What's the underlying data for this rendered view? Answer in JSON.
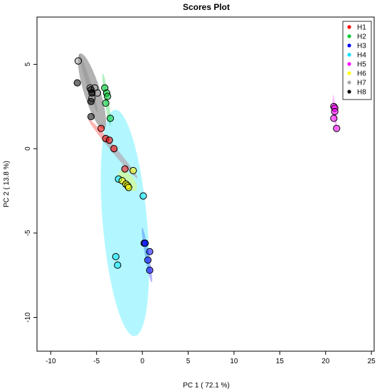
{
  "chart_data": {
    "type": "scatter",
    "title": "Scores Plot",
    "xlabel": "PC 1 ( 72.1 %)",
    "ylabel": "PC 2 ( 13.8 %)",
    "xlim": [
      -11.5,
      25.3
    ],
    "ylim": [
      -12,
      7.8
    ],
    "xticks": [
      -10,
      -5,
      0,
      5,
      10,
      15,
      20,
      25
    ],
    "yticks": [
      5,
      0,
      -5,
      -10
    ],
    "legend_position": "top-right",
    "series": [
      {
        "name": "H1",
        "color": "#ff0000",
        "points": [
          [
            -4.5,
            1.2
          ],
          [
            -4.0,
            0.6
          ],
          [
            -3.6,
            0.5
          ],
          [
            -3.1,
            0.0
          ],
          [
            -1.9,
            -1.2
          ]
        ],
        "ellipse": {
          "cx": -3.2,
          "cy": 0.0,
          "rx": 3.2,
          "ry": 0.22,
          "angle": -33
        }
      },
      {
        "name": "H2",
        "color": "#00cc33",
        "points": [
          [
            -4.1,
            3.6
          ],
          [
            -3.9,
            3.3
          ],
          [
            -3.8,
            3.1
          ],
          [
            -4.0,
            2.7
          ],
          [
            -3.5,
            1.8
          ]
        ],
        "ellipse": {
          "cx": -3.9,
          "cy": 2.9,
          "rx": 1.6,
          "ry": 0.22,
          "angle": -75
        }
      },
      {
        "name": "H3",
        "color": "#0000ff",
        "points": [
          [
            0.2,
            -5.6
          ],
          [
            0.3,
            -5.6
          ],
          [
            0.8,
            -6.1
          ],
          [
            0.6,
            -6.6
          ],
          [
            0.8,
            -7.2
          ]
        ],
        "ellipse": {
          "cx": 0.5,
          "cy": -6.3,
          "rx": 1.7,
          "ry": 0.22,
          "angle": -72
        }
      },
      {
        "name": "H4",
        "color": "#00e5ff",
        "points": [
          [
            -2.6,
            -1.8
          ],
          [
            0.1,
            -2.8
          ],
          [
            -2.9,
            -6.4
          ],
          [
            -2.7,
            -6.9
          ]
        ],
        "ellipse": {
          "cx": -1.9,
          "cy": -4.4,
          "rx": 2.4,
          "ry": 6.8,
          "angle": 10
        }
      },
      {
        "name": "H5",
        "color": "#ff00ff",
        "points": [
          [
            20.9,
            2.5
          ],
          [
            21.0,
            2.4
          ],
          [
            21.0,
            2.2
          ],
          [
            20.9,
            1.8
          ],
          [
            21.2,
            1.2
          ]
        ],
        "ellipse": {
          "cx": 21.0,
          "cy": 2.1,
          "rx": 1.1,
          "ry": 0.13,
          "angle": -80
        }
      },
      {
        "name": "H6",
        "color": "#ffff00",
        "points": [
          [
            -1.0,
            -1.3
          ],
          [
            -2.2,
            -1.9
          ],
          [
            -1.8,
            -2.1
          ],
          [
            -1.6,
            -2.2
          ],
          [
            -1.5,
            -2.3
          ]
        ],
        "ellipse": {
          "cx": -1.6,
          "cy": -1.9,
          "rx": 1.1,
          "ry": 0.45,
          "angle": -25
        }
      },
      {
        "name": "H7",
        "color": "#aaaaaa",
        "points": [
          [
            -7.0,
            5.2
          ],
          [
            -5.7,
            3.6
          ],
          [
            -5.2,
            3.6
          ],
          [
            -4.9,
            3.3
          ],
          [
            -5.5,
            3.0
          ]
        ],
        "ellipse": {
          "cx": -5.9,
          "cy": 3.9,
          "rx": 2.0,
          "ry": 0.22,
          "angle": -60
        }
      },
      {
        "name": "H8",
        "color": "#000000",
        "points": [
          [
            -7.1,
            3.9
          ],
          [
            -5.6,
            3.5
          ],
          [
            -5.5,
            3.3
          ],
          [
            -5.6,
            2.8
          ],
          [
            -5.6,
            1.9
          ]
        ],
        "ellipse": {
          "cx": -5.5,
          "cy": 3.4,
          "rx": 2.6,
          "ry": 0.8,
          "angle": -58
        }
      }
    ]
  }
}
